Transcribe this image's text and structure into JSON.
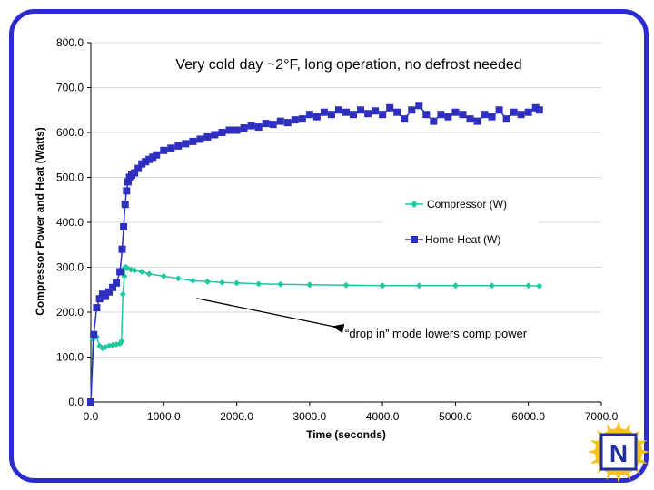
{
  "chart_data": {
    "type": "scatter",
    "title": "Very cold day ~2°F, long operation, no defrost needed",
    "xlabel": "Time (seconds)",
    "ylabel": "Compressor Power and Heat (Watts)",
    "xlim": [
      0,
      7000
    ],
    "ylim": [
      0,
      800
    ],
    "x_ticks": [
      "0.0",
      "1000.0",
      "2000.0",
      "3000.0",
      "4000.0",
      "5000.0",
      "6000.0",
      "7000.0"
    ],
    "y_ticks": [
      "0.0",
      "100.0",
      "200.0",
      "300.0",
      "400.0",
      "500.0",
      "600.0",
      "700.0",
      "800.0"
    ],
    "legend_position": "right-middle",
    "series": [
      {
        "name": "Compressor (W)",
        "color": "#1fc8a0",
        "marker": "diamond",
        "x": [
          0,
          30,
          50,
          80,
          120,
          160,
          200,
          250,
          300,
          350,
          400,
          420,
          440,
          460,
          470,
          480,
          500,
          550,
          600,
          700,
          800,
          1000,
          1200,
          1400,
          1600,
          1800,
          2000,
          2300,
          2600,
          3000,
          3500,
          4000,
          4500,
          5000,
          5500,
          6000,
          6150
        ],
        "y": [
          0,
          140,
          150,
          145,
          125,
          120,
          122,
          125,
          127,
          128,
          130,
          135,
          240,
          280,
          300,
          300,
          298,
          295,
          293,
          290,
          285,
          280,
          275,
          270,
          268,
          266,
          265,
          263,
          262,
          261,
          260,
          259,
          259,
          259,
          259,
          259,
          258
        ]
      },
      {
        "name": "Home Heat (W)",
        "color": "#2e2ec0",
        "marker": "square",
        "x": [
          0,
          40,
          80,
          120,
          160,
          200,
          250,
          300,
          350,
          400,
          430,
          450,
          470,
          490,
          510,
          530,
          560,
          600,
          650,
          700,
          750,
          800,
          850,
          900,
          1000,
          1100,
          1200,
          1300,
          1400,
          1500,
          1600,
          1700,
          1800,
          1900,
          2000,
          2100,
          2200,
          2300,
          2400,
          2500,
          2600,
          2700,
          2800,
          2900,
          3000,
          3100,
          3200,
          3300,
          3400,
          3500,
          3600,
          3700,
          3800,
          3900,
          4000,
          4100,
          4200,
          4300,
          4400,
          4500,
          4600,
          4700,
          4800,
          4900,
          5000,
          5100,
          5200,
          5300,
          5400,
          5500,
          5600,
          5700,
          5800,
          5900,
          6000,
          6100,
          6150
        ],
        "y": [
          0,
          150,
          210,
          230,
          240,
          235,
          245,
          255,
          265,
          290,
          340,
          390,
          440,
          470,
          490,
          500,
          505,
          510,
          520,
          530,
          535,
          540,
          545,
          550,
          560,
          565,
          570,
          575,
          580,
          585,
          590,
          595,
          600,
          605,
          605,
          610,
          615,
          612,
          620,
          618,
          625,
          622,
          628,
          630,
          640,
          635,
          645,
          640,
          650,
          645,
          640,
          650,
          642,
          648,
          640,
          655,
          645,
          630,
          650,
          660,
          640,
          625,
          640,
          635,
          645,
          640,
          630,
          625,
          640,
          635,
          650,
          630,
          645,
          640,
          645,
          655,
          650
        ]
      }
    ],
    "annotation": {
      "text": "“drop in” mode lowers comp power",
      "points_to": {
        "x": 1450,
        "y": 255
      }
    }
  },
  "logo": {
    "letter": "N",
    "frame_color": "#1f2fa0",
    "sun_color": "#f4c21b"
  }
}
